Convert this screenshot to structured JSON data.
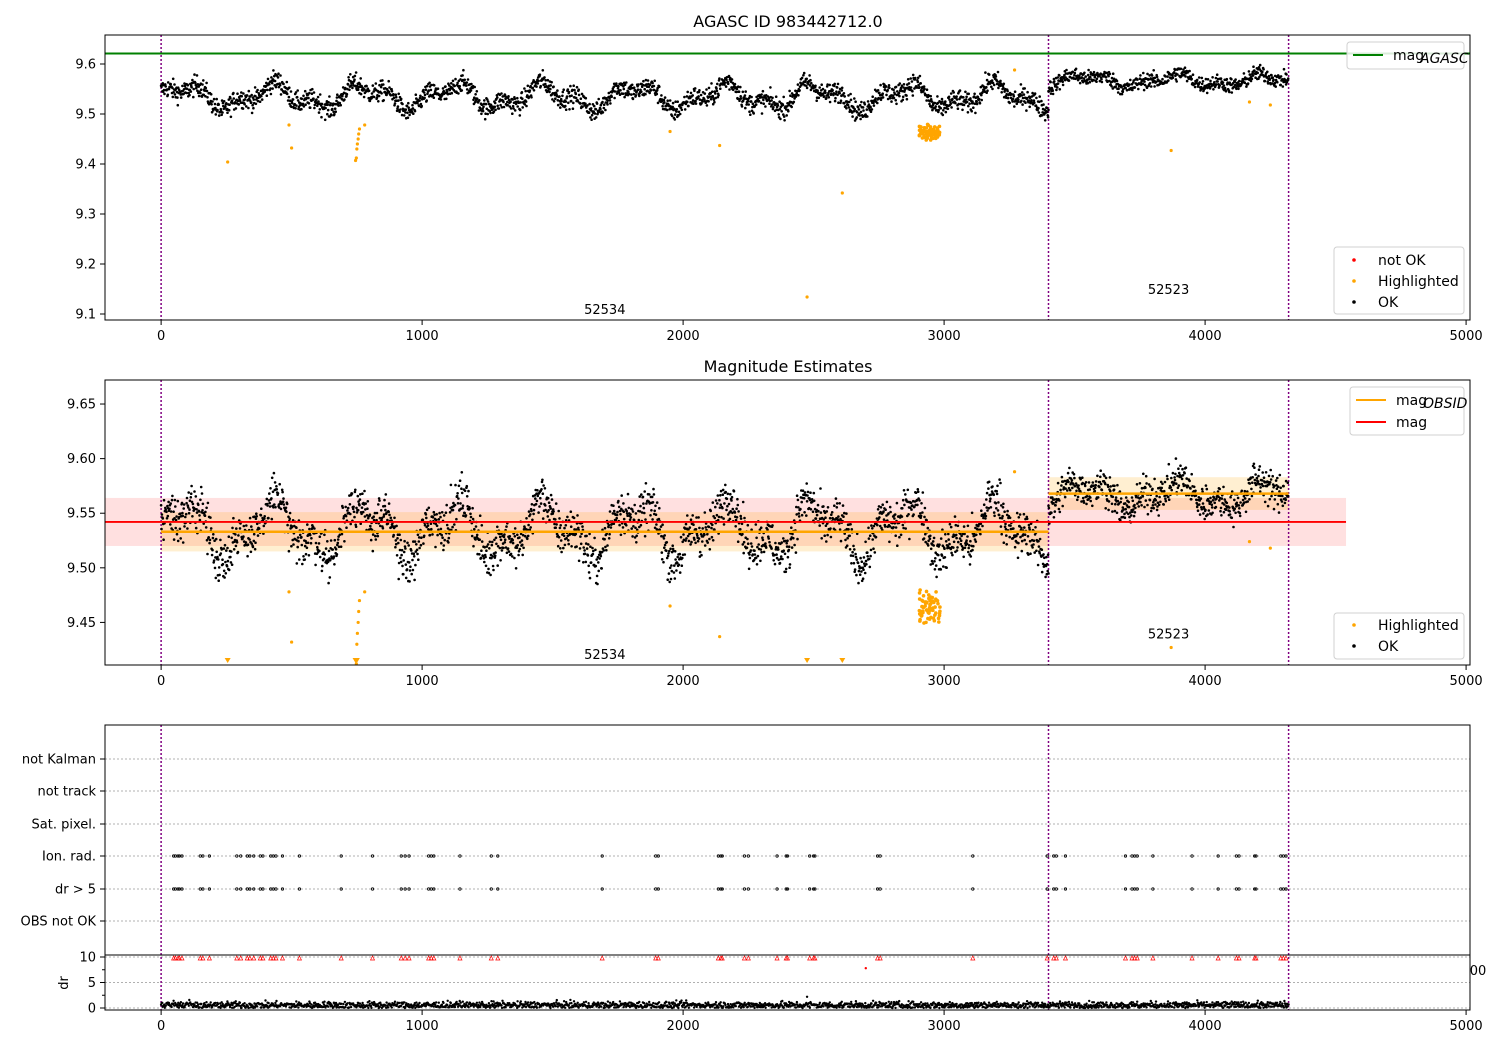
{
  "chart_data": [
    {
      "type": "scatter",
      "title": "AGASC ID 983442712.0",
      "xlim": [
        -215,
        5015
      ],
      "ylim": [
        9.088,
        9.658
      ],
      "xticks": [
        0,
        1000,
        2000,
        3000,
        4000,
        5000
      ],
      "xtick_labels": [
        "0",
        "1000",
        "2000",
        "3000",
        "4000",
        "5000"
      ],
      "yticks": [
        9.1,
        9.2,
        9.3,
        9.4,
        9.5,
        9.6
      ],
      "ytick_labels": [
        "9.1",
        "9.2",
        "9.3",
        "9.4",
        "9.5",
        "9.6"
      ],
      "legend_top": [
        {
          "label_main": "mag",
          "label_sub": "AGASC",
          "color": "#008000",
          "kind": "line"
        }
      ],
      "legend_bottom": [
        {
          "label": "not OK",
          "color": "#ff0000",
          "kind": "dot"
        },
        {
          "label": "Highlighted",
          "color": "#ffa500",
          "kind": "dot"
        },
        {
          "label": "OK",
          "color": "#000000",
          "kind": "dot"
        }
      ],
      "legend_top_placement": "upper right",
      "legend_bottom_placement": "lower right",
      "obsid_boundaries": [
        0,
        3400,
        4320
      ],
      "obsid_labels": [
        {
          "text": "52534",
          "x": 1700,
          "y": 9.11
        },
        {
          "text": "52523",
          "x": 3860,
          "y": 9.15
        }
      ],
      "mag_agasc": 9.621,
      "ok_segments": [
        {
          "x0": 0,
          "x1": 3400,
          "mean": 9.535,
          "amp": 0.02,
          "noise": 0.018
        },
        {
          "x0": 3400,
          "x1": 4320,
          "mean": 9.567,
          "amp": 0.01,
          "noise": 0.014
        }
      ],
      "highlighted": [
        [
          255,
          9.404
        ],
        [
          490,
          9.478
        ],
        [
          500,
          9.432
        ],
        [
          745,
          9.407
        ],
        [
          748,
          9.412
        ],
        [
          750,
          9.43
        ],
        [
          752,
          9.44
        ],
        [
          755,
          9.45
        ],
        [
          757,
          9.46
        ],
        [
          760,
          9.47
        ],
        [
          780,
          9.478
        ],
        [
          1950,
          9.465
        ],
        [
          2140,
          9.437
        ],
        [
          2475,
          9.134
        ],
        [
          2610,
          9.342
        ],
        [
          3270,
          9.588
        ],
        [
          3870,
          9.427
        ],
        [
          4170,
          9.524
        ],
        [
          4250,
          9.518
        ]
      ],
      "highlighted_cluster": {
        "x0": 2905,
        "x1": 2985,
        "mean": 9.463,
        "spread": 0.018
      }
    },
    {
      "type": "scatter",
      "title": "Magnitude Estimates",
      "xlim": [
        -215,
        5015
      ],
      "ylim": [
        9.411,
        9.672
      ],
      "xticks": [
        0,
        1000,
        2000,
        3000,
        4000,
        5000
      ],
      "xtick_labels": [
        "0",
        "1000",
        "2000",
        "3000",
        "4000",
        "5000"
      ],
      "yticks": [
        9.45,
        9.5,
        9.55,
        9.6,
        9.65
      ],
      "ytick_labels": [
        "9.45",
        "9.50",
        "9.55",
        "9.60",
        "9.65"
      ],
      "legend_top": [
        {
          "label_main": "mag",
          "label_sub": "OBSID",
          "color": "#ffa500",
          "kind": "line"
        },
        {
          "label_main": "mag",
          "label_sub": "",
          "color": "#ff0000",
          "kind": "line"
        }
      ],
      "legend_bottom": [
        {
          "label": "Highlighted",
          "color": "#ffa500",
          "kind": "dot"
        },
        {
          "label": "OK",
          "color": "#000000",
          "kind": "dot"
        }
      ],
      "legend_top_placement": "upper right",
      "legend_bottom_placement": "lower right",
      "obsid_boundaries": [
        0,
        3400,
        4320
      ],
      "obsid_labels": [
        {
          "text": "52534",
          "x": 1700,
          "y": 9.421
        },
        {
          "text": "52523",
          "x": 3860,
          "y": 9.44
        }
      ],
      "mag": 9.542,
      "mag_band": [
        9.52,
        9.564
      ],
      "mag_extent": [
        -215,
        4540
      ],
      "mag_obsid": [
        {
          "x0": 0,
          "x1": 3400,
          "value": 9.533,
          "band": [
            9.515,
            9.551
          ]
        },
        {
          "x0": 3400,
          "x1": 4320,
          "value": 9.568,
          "band": [
            9.553,
            9.583
          ]
        }
      ],
      "highlighted_lower_markers": [
        255,
        745,
        750,
        2475,
        2610
      ]
    },
    {
      "type": "scatter",
      "xlim": [
        -215,
        5015
      ],
      "category_labels": [
        "not Kalman",
        "not track",
        "Sat. pixel.",
        "Ion. rad.",
        "dr > 5",
        "OBS not OK"
      ],
      "flag_times": [
        48,
        55,
        65,
        70,
        80,
        150,
        160,
        185,
        290,
        305,
        330,
        340,
        355,
        380,
        390,
        420,
        430,
        440,
        465,
        530,
        690,
        810,
        920,
        935,
        950,
        1025,
        1035,
        1045,
        1145,
        1265,
        1290,
        1690,
        1895,
        1905,
        2135,
        2145,
        2150,
        2235,
        2250,
        2360,
        2395,
        2400,
        2485,
        2500,
        2505,
        2745,
        2755,
        3110,
        3395,
        3420,
        3430,
        3465,
        3695,
        3720,
        3730,
        3740,
        3800,
        3950,
        4050,
        4120,
        4130,
        4190,
        4195,
        4290,
        4300,
        4310
      ],
      "dr_ylim": [
        -0.8,
        10.5
      ],
      "dr_yticks": [
        0,
        5,
        10
      ],
      "dr_ytick_labels": [
        "0",
        "5",
        "10"
      ],
      "dr_ylabel": "dr",
      "dr_flag_value": 9.8,
      "dr_extra_points": [
        [
          2700,
          7.8
        ],
        [
          2475,
          2.2
        ]
      ],
      "xticks": [
        0,
        1000,
        2000,
        3000,
        4000,
        5000
      ],
      "xtick_labels": [
        "0",
        "1000",
        "2000",
        "3000",
        "4000",
        "5000"
      ],
      "obsid_boundaries": [
        0,
        3400,
        4320
      ],
      "stray_right_label": "00"
    }
  ]
}
